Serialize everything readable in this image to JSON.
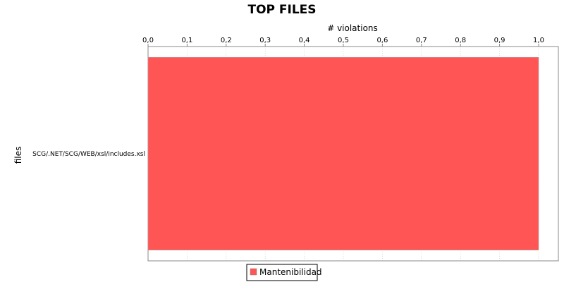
{
  "chart_data": {
    "type": "bar",
    "orientation": "horizontal",
    "title": "TOP FILES",
    "xlabel": "# violations",
    "ylabel": "files",
    "categories": [
      "SCG/.NET/SCG/WEB/xsl/includes.xsl"
    ],
    "series": [
      {
        "name": "Mantenibilidad",
        "values": [
          1
        ],
        "color": "#ff5555"
      }
    ],
    "xlim": [
      0,
      1
    ],
    "ticks": [
      "0,0",
      "0,1",
      "0,2",
      "0,3",
      "0,4",
      "0,5",
      "0,6",
      "0,7",
      "0,8",
      "0,9",
      "1,0"
    ],
    "tick_values": [
      0,
      0.1,
      0.2,
      0.3,
      0.4,
      0.5,
      0.6,
      0.7,
      0.8,
      0.9,
      1.0
    ],
    "grid": true,
    "grid_color": "#c0c0c0",
    "legend": "bottom"
  }
}
